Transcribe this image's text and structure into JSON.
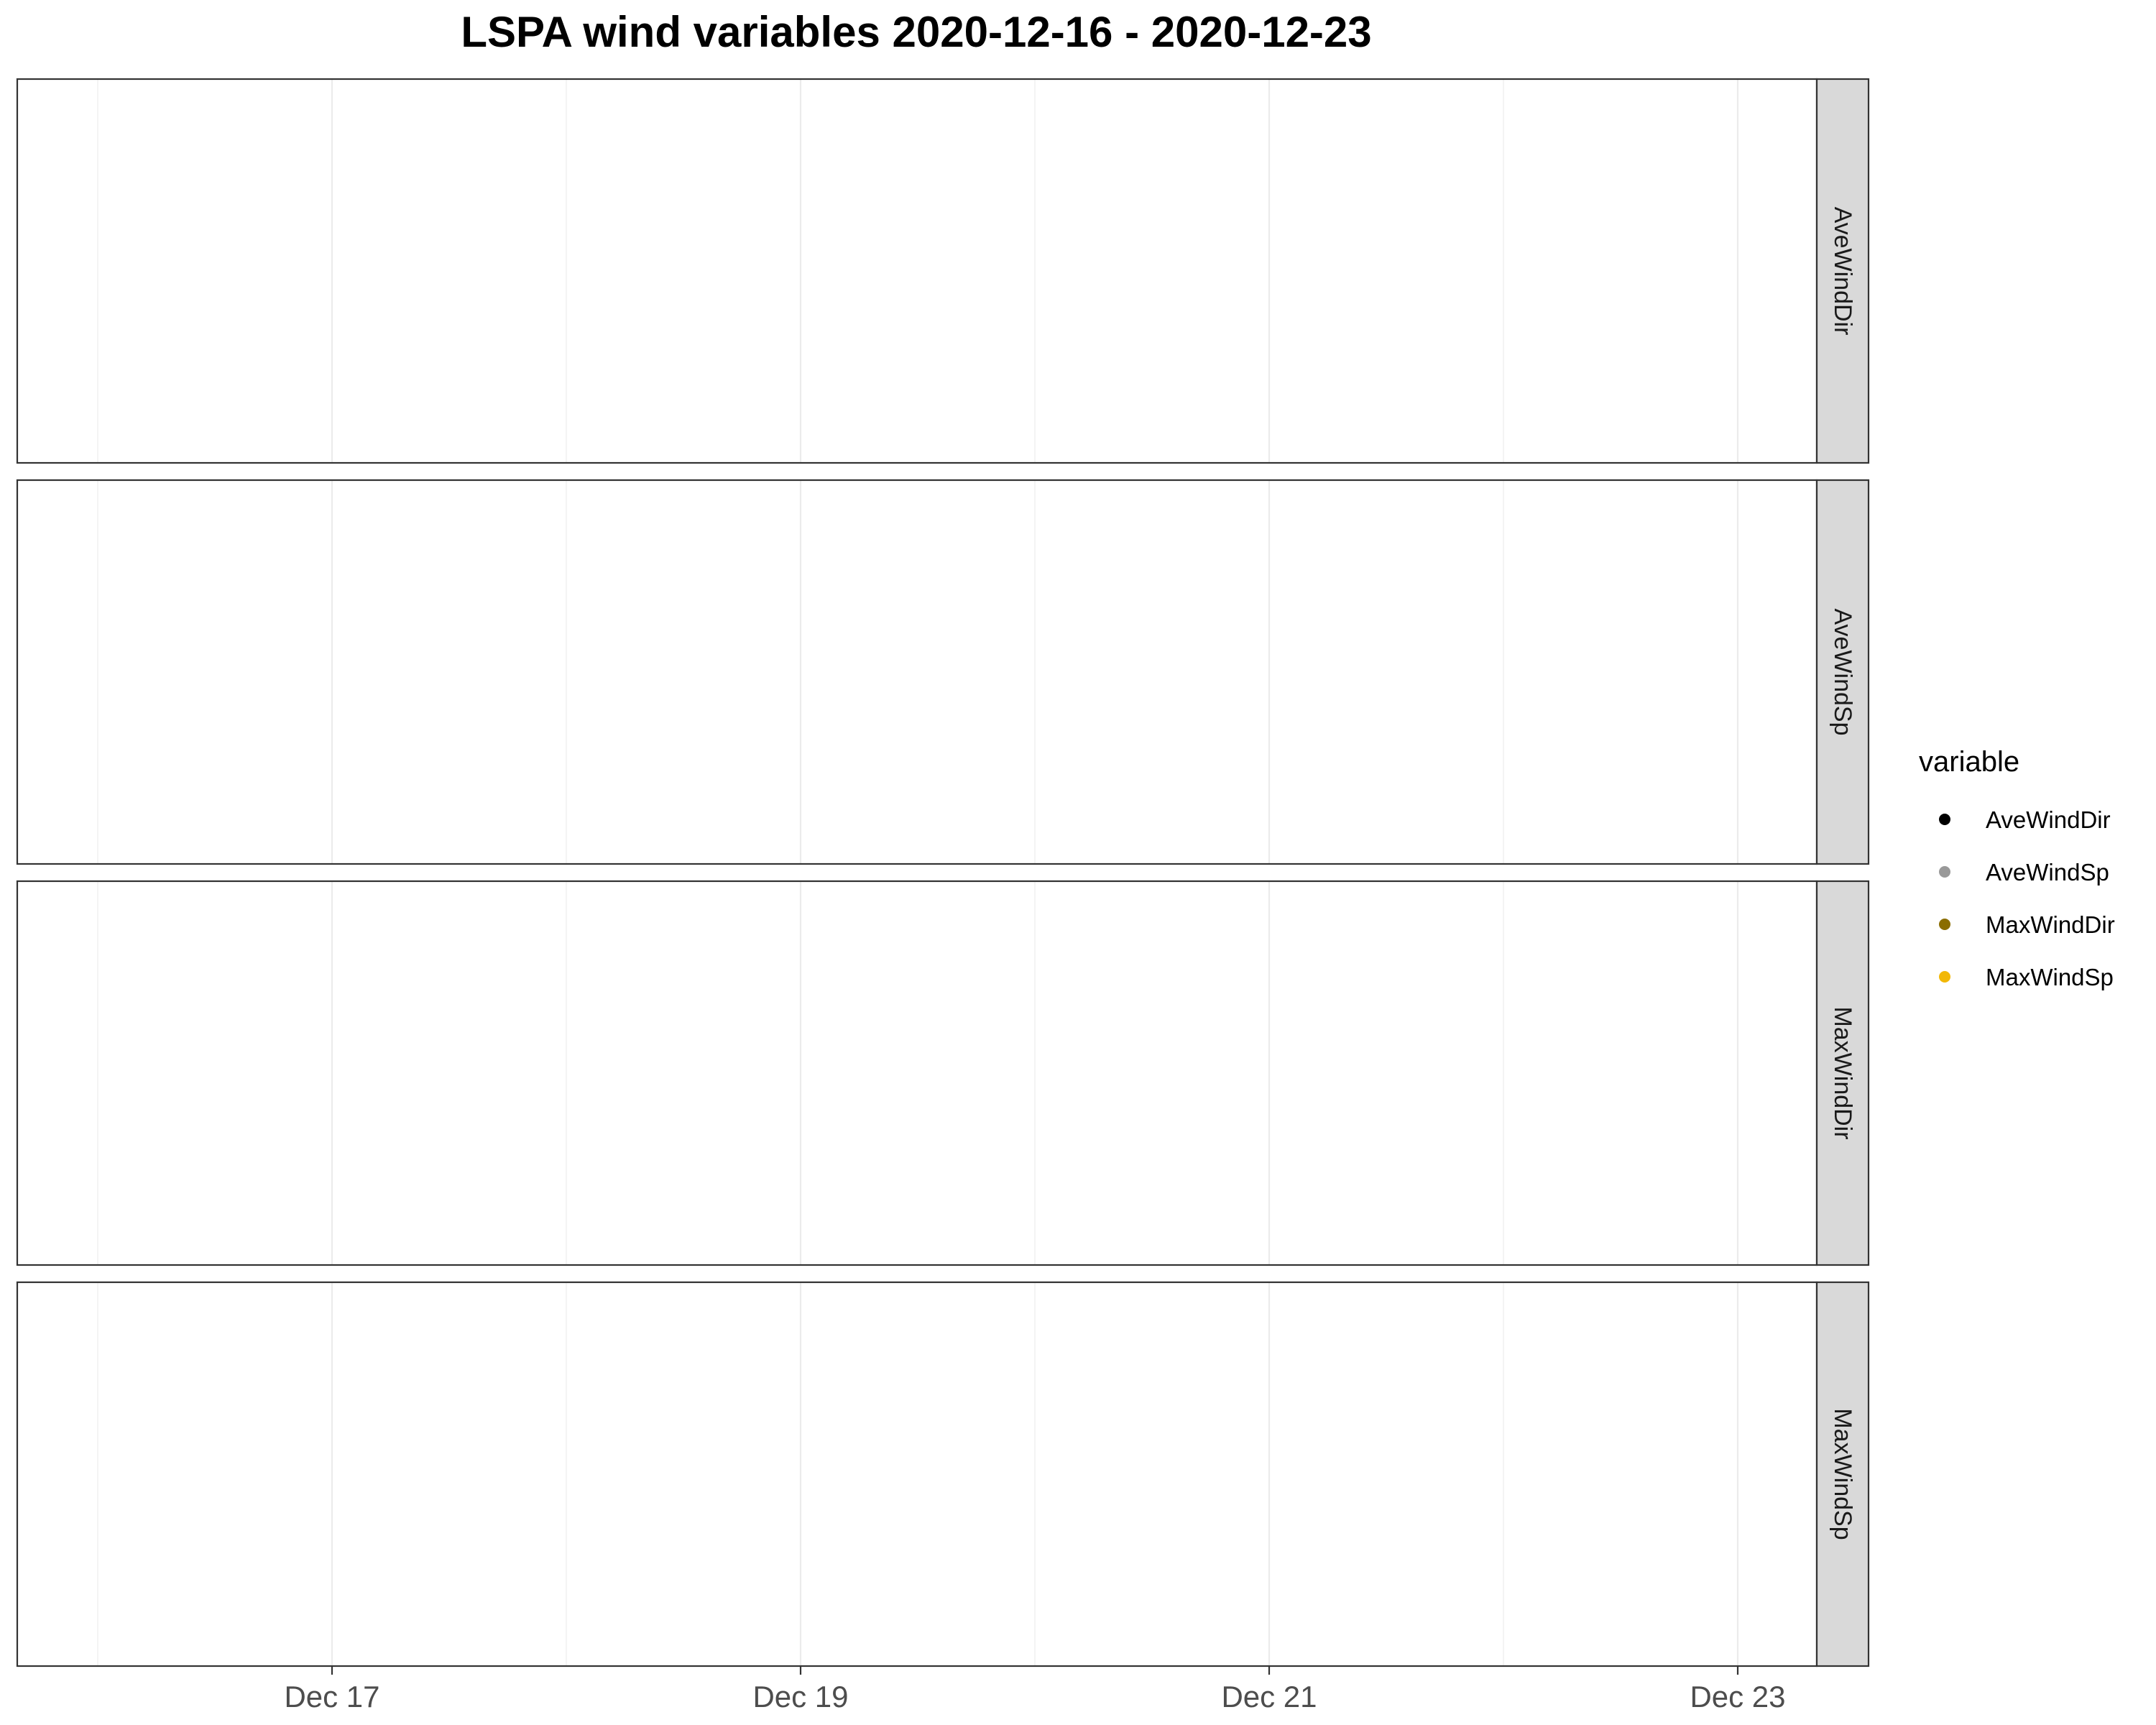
{
  "chart_data": {
    "type": "scatter",
    "title": "LSPA wind variables 2020-12-16 - 2020-12-23",
    "xlabel": "",
    "ylabel": "",
    "x_range": [
      "2020-12-16",
      "2020-12-23"
    ],
    "x_ticks": [
      "2020-12-17",
      "2020-12-19",
      "2020-12-21",
      "2020-12-23"
    ],
    "x_tick_labels": [
      "Dec 17",
      "Dec 19",
      "Dec 21",
      "Dec 23"
    ],
    "grid": true,
    "facets": [
      "AveWindDir",
      "AveWindSp",
      "MaxWindDir",
      "MaxWindSp"
    ],
    "legend": {
      "title": "variable",
      "position": "right",
      "entries": [
        {
          "name": "AveWindDir",
          "color": "#000000"
        },
        {
          "name": "AveWindSp",
          "color": "#999999"
        },
        {
          "name": "MaxWindDir",
          "color": "#8a6d00"
        },
        {
          "name": "MaxWindSp",
          "color": "#f2b807"
        }
      ]
    },
    "series": [
      {
        "name": "AveWindDir",
        "values": []
      },
      {
        "name": "AveWindSp",
        "values": []
      },
      {
        "name": "MaxWindDir",
        "values": []
      },
      {
        "name": "MaxWindSp",
        "values": []
      }
    ]
  }
}
